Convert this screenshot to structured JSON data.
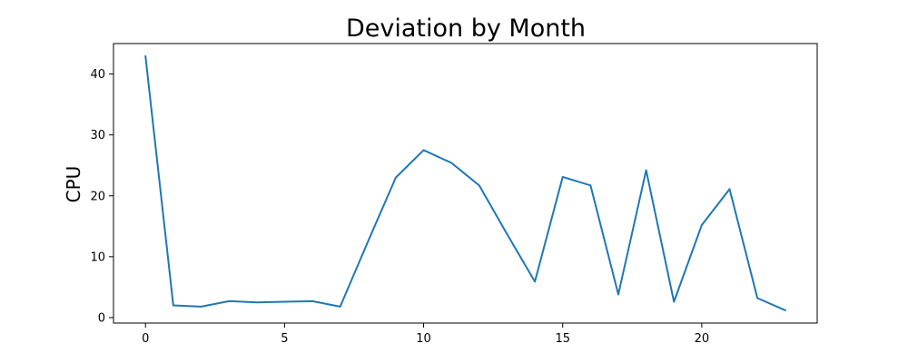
{
  "chart_data": {
    "type": "line",
    "title": "Deviation by Month",
    "xlabel": "",
    "ylabel": "CPU",
    "x": [
      0,
      1,
      2,
      3,
      4,
      5,
      6,
      7,
      8,
      9,
      10,
      11,
      12,
      13,
      14,
      15,
      16,
      17,
      18,
      19,
      20,
      21,
      22,
      23
    ],
    "series": [
      {
        "values": [
          42.9,
          2.0,
          1.8,
          2.7,
          2.5,
          2.6,
          2.7,
          1.8,
          12.5,
          23.0,
          27.5,
          25.4,
          21.7,
          13.7,
          5.9,
          23.1,
          21.7,
          3.8,
          24.2,
          2.6,
          15.2,
          21.1,
          3.2,
          1.2
        ],
        "color": "#1f77b4"
      }
    ],
    "xlim": [
      -1.15,
      24.15
    ],
    "ylim": [
      -0.9,
      45.0
    ],
    "xticks": [
      0,
      5,
      10,
      15,
      20
    ],
    "yticks": [
      0,
      10,
      20,
      30,
      40
    ],
    "grid": false,
    "legend": "none"
  }
}
